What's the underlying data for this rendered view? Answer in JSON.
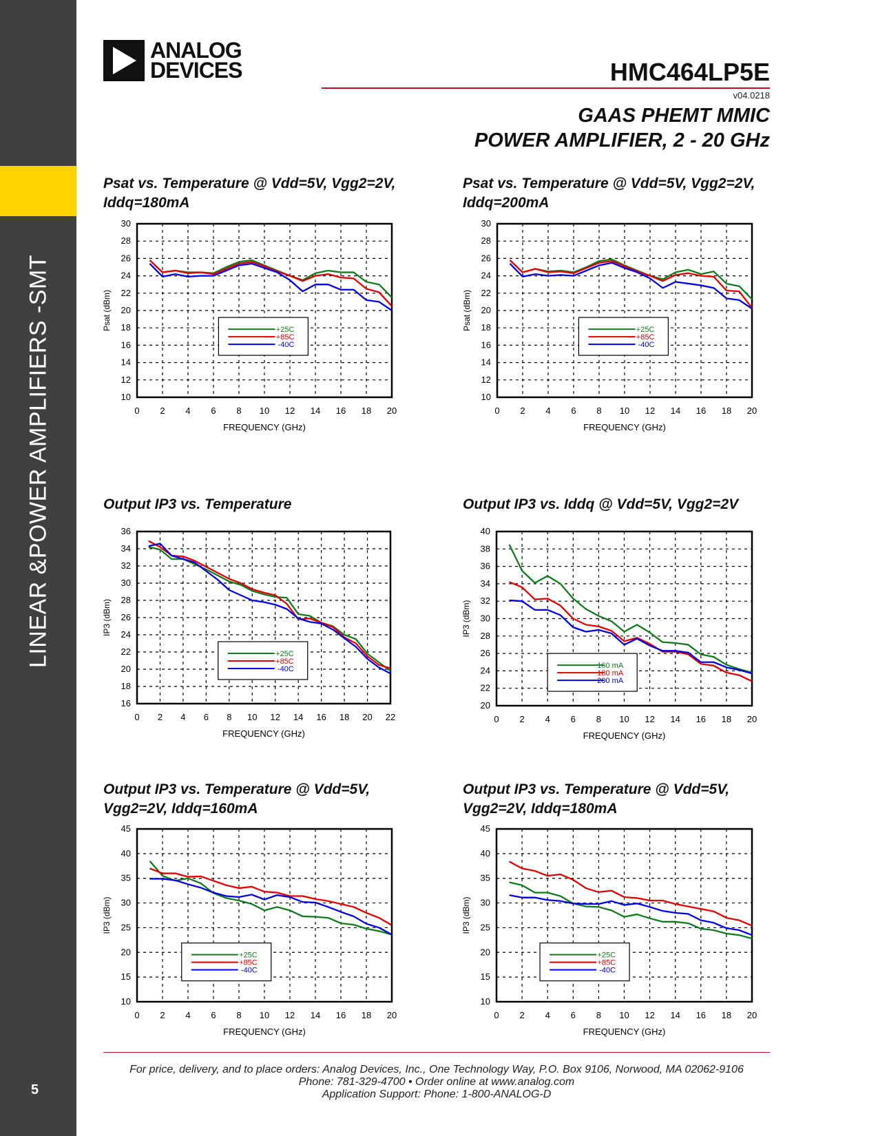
{
  "sidebar": {
    "section": "LINEAR &POWER AMPLIFIERS -SMT",
    "page_number": "5"
  },
  "header": {
    "logo_line1": "ANALOG",
    "logo_line2": "DEVICES",
    "part_number": "HMC464LP5E",
    "version": "v04.0218",
    "subtitle_line1": "GAAS PHEMT MMIC",
    "subtitle_line2": "POWER AMPLIFIER, 2 - 20 GHz"
  },
  "colors": {
    "green": "#117a1a",
    "red": "#e00000",
    "blue": "#0000e0",
    "accent": "#c8102e",
    "sidebar": "#404040",
    "tab": "#ffd200"
  },
  "chart_data": [
    {
      "type": "line",
      "title": [
        "Psat vs. Temperature @ Vdd=5V, Vgg2=2V,",
        "Iddq=180mA"
      ],
      "xlabel": "FREQUENCY (GHz)",
      "ylabel": "Psat (dBm)",
      "xlim": [
        0,
        20
      ],
      "ylim": [
        10,
        30
      ],
      "xticks": [
        0,
        2,
        4,
        6,
        8,
        10,
        12,
        14,
        16,
        18,
        20
      ],
      "yticks": [
        10,
        12,
        14,
        16,
        18,
        20,
        22,
        24,
        26,
        28,
        30
      ],
      "grid": true,
      "legend": "center",
      "x": [
        1,
        2,
        3,
        4,
        5,
        6,
        7,
        8,
        9,
        10,
        11,
        12,
        13,
        14,
        15,
        16,
        17,
        18,
        19,
        20
      ],
      "series": [
        {
          "name": "+25C",
          "color": "#117a1a",
          "values": [
            25.8,
            24.4,
            24.6,
            24.4,
            24.4,
            24.3,
            25.0,
            25.6,
            25.8,
            25.2,
            24.6,
            24.0,
            23.5,
            24.3,
            24.6,
            24.4,
            24.4,
            23.3,
            23.0,
            21.5
          ]
        },
        {
          "name": "+85C",
          "color": "#e00000",
          "values": [
            25.8,
            24.4,
            24.6,
            24.3,
            24.4,
            24.2,
            24.8,
            25.4,
            25.6,
            25.1,
            24.5,
            24.0,
            23.4,
            24.0,
            24.2,
            23.8,
            23.7,
            22.5,
            22.1,
            20.5
          ]
        },
        {
          "name": "-40C",
          "color": "#0000e0",
          "values": [
            25.4,
            23.9,
            24.2,
            23.9,
            24.0,
            24.0,
            24.6,
            25.2,
            25.4,
            24.9,
            24.4,
            23.5,
            22.2,
            23.0,
            23.0,
            22.4,
            22.4,
            21.2,
            21.0,
            20.0
          ]
        }
      ]
    },
    {
      "type": "line",
      "title": [
        "Psat vs. Temperature @ Vdd=5V, Vgg2=2V,",
        "Iddq=200mA"
      ],
      "xlabel": "FREQUENCY (GHz)",
      "ylabel": "Psat (dBm)",
      "xlim": [
        0,
        20
      ],
      "ylim": [
        10,
        30
      ],
      "xticks": [
        0,
        2,
        4,
        6,
        8,
        10,
        12,
        14,
        16,
        18,
        20
      ],
      "yticks": [
        10,
        12,
        14,
        16,
        18,
        20,
        22,
        24,
        26,
        28,
        30
      ],
      "grid": true,
      "legend": "center",
      "x": [
        1,
        2,
        3,
        4,
        5,
        6,
        7,
        8,
        9,
        10,
        11,
        12,
        13,
        14,
        15,
        16,
        17,
        18,
        19,
        20
      ],
      "series": [
        {
          "name": "+25C",
          "color": "#117a1a",
          "values": [
            25.8,
            24.4,
            24.8,
            24.5,
            24.6,
            24.4,
            25.0,
            25.7,
            25.9,
            25.2,
            24.6,
            24.0,
            23.6,
            24.4,
            24.7,
            24.2,
            24.5,
            23.1,
            22.8,
            21.3
          ]
        },
        {
          "name": "+85C",
          "color": "#e00000",
          "values": [
            25.8,
            24.4,
            24.8,
            24.4,
            24.5,
            24.3,
            24.9,
            25.5,
            25.7,
            25.1,
            24.5,
            24.0,
            23.4,
            24.1,
            24.3,
            24.0,
            23.9,
            22.3,
            22.2,
            20.3
          ]
        },
        {
          "name": "-40C",
          "color": "#0000e0",
          "values": [
            25.4,
            23.9,
            24.2,
            24.0,
            24.1,
            24.0,
            24.6,
            25.2,
            25.5,
            24.9,
            24.4,
            23.7,
            22.6,
            23.3,
            23.1,
            22.9,
            22.6,
            21.4,
            21.2,
            20.2
          ]
        }
      ]
    },
    {
      "type": "line",
      "title": [
        "Output IP3 vs. Temperature"
      ],
      "xlabel": "FREQUENCY (GHz)",
      "ylabel": "IP3 (dBm)",
      "xlim": [
        0,
        22
      ],
      "ylim": [
        16,
        36
      ],
      "xticks": [
        0,
        2,
        4,
        6,
        8,
        10,
        12,
        14,
        16,
        18,
        20,
        22
      ],
      "yticks": [
        16,
        18,
        20,
        22,
        24,
        26,
        28,
        30,
        32,
        34,
        36
      ],
      "grid": true,
      "legend": "bottom-center",
      "x": [
        1,
        2,
        3,
        4,
        5,
        6,
        7,
        8,
        9,
        10,
        11,
        12,
        13,
        14,
        15,
        16,
        17,
        18,
        19,
        20,
        21,
        22
      ],
      "series": [
        {
          "name": "+25C",
          "color": "#117a1a",
          "values": [
            34.2,
            33.9,
            32.8,
            32.8,
            32.2,
            31.6,
            30.9,
            30.2,
            29.8,
            29.1,
            28.7,
            28.4,
            28.3,
            26.4,
            26.2,
            25.4,
            25.0,
            24.0,
            23.5,
            21.8,
            20.8,
            19.8
          ]
        },
        {
          "name": "+85C",
          "color": "#e00000",
          "values": [
            34.9,
            34.2,
            33.2,
            33.1,
            32.6,
            31.9,
            31.2,
            30.5,
            30.0,
            29.3,
            28.9,
            28.6,
            27.6,
            25.8,
            25.9,
            25.4,
            24.9,
            23.7,
            23.0,
            21.5,
            20.5,
            20.1
          ]
        },
        {
          "name": "-40C",
          "color": "#0000e0",
          "values": [
            34.3,
            34.6,
            33.2,
            32.8,
            32.4,
            31.4,
            30.4,
            29.2,
            28.6,
            28.0,
            27.8,
            27.5,
            27.0,
            25.9,
            25.5,
            25.3,
            24.6,
            23.6,
            22.6,
            21.2,
            20.2,
            19.5
          ]
        }
      ]
    },
    {
      "type": "line",
      "title": [
        "Output IP3 vs. Iddq @ Vdd=5V, Vgg2=2V"
      ],
      "xlabel": "FREQUENCY (GHz)",
      "ylabel": "IP3 (dBm)",
      "xlim": [
        0,
        20
      ],
      "ylim": [
        20,
        40
      ],
      "xticks": [
        0,
        2,
        4,
        6,
        8,
        10,
        12,
        14,
        16,
        18,
        20
      ],
      "yticks": [
        20,
        22,
        24,
        26,
        28,
        30,
        32,
        34,
        36,
        38,
        40
      ],
      "grid": true,
      "legend": "bottom-left",
      "x": [
        1,
        2,
        3,
        4,
        5,
        6,
        7,
        8,
        9,
        10,
        11,
        12,
        13,
        14,
        15,
        16,
        17,
        18,
        19,
        20
      ],
      "series": [
        {
          "name": "160 mA",
          "color": "#117a1a",
          "values": [
            38.5,
            35.5,
            34.1,
            34.9,
            34.0,
            32.3,
            31.1,
            30.3,
            29.7,
            28.5,
            29.3,
            28.4,
            27.3,
            27.2,
            27.0,
            25.9,
            25.6,
            24.7,
            24.2,
            23.8
          ]
        },
        {
          "name": "180 mA",
          "color": "#e00000",
          "values": [
            34.2,
            33.6,
            32.2,
            32.3,
            31.5,
            30.0,
            29.3,
            29.1,
            28.6,
            27.4,
            27.8,
            27.1,
            26.2,
            26.2,
            25.9,
            24.8,
            24.6,
            23.8,
            23.5,
            22.8
          ]
        },
        {
          "name": "200 mA",
          "color": "#0000e0",
          "values": [
            32.1,
            32.0,
            31.0,
            31.0,
            30.4,
            29.0,
            28.5,
            28.7,
            28.3,
            27.0,
            27.7,
            26.9,
            26.3,
            26.3,
            26.1,
            25.0,
            25.0,
            24.4,
            24.1,
            23.7
          ]
        }
      ]
    },
    {
      "type": "line",
      "title": [
        "Output IP3 vs. Temperature @ Vdd=5V,",
        "Vgg2=2V, Iddq=160mA"
      ],
      "xlabel": "FREQUENCY (GHz)",
      "ylabel": "IP3 (dBm)",
      "xlim": [
        0,
        20
      ],
      "ylim": [
        10,
        45
      ],
      "xticks": [
        0,
        2,
        4,
        6,
        8,
        10,
        12,
        14,
        16,
        18,
        20
      ],
      "yticks": [
        10,
        15,
        20,
        25,
        30,
        35,
        40,
        45
      ],
      "grid": true,
      "legend": "bottom-left",
      "x": [
        1,
        2,
        3,
        4,
        5,
        6,
        7,
        8,
        9,
        10,
        11,
        12,
        13,
        14,
        15,
        16,
        17,
        18,
        19,
        20
      ],
      "series": [
        {
          "name": "+25C",
          "color": "#117a1a",
          "values": [
            38.5,
            35.5,
            34.5,
            35.0,
            34.0,
            32.0,
            31.0,
            30.5,
            29.8,
            28.5,
            29.2,
            28.5,
            27.3,
            27.2,
            27.0,
            25.9,
            25.6,
            24.8,
            24.3,
            23.6
          ]
        },
        {
          "name": "+85C",
          "color": "#e00000",
          "values": [
            37.0,
            36.0,
            36.0,
            35.3,
            35.4,
            34.5,
            33.6,
            33.0,
            33.3,
            32.3,
            32.1,
            31.4,
            31.4,
            30.8,
            30.4,
            29.8,
            29.2,
            28.0,
            27.0,
            25.5
          ]
        },
        {
          "name": "-40C",
          "color": "#0000e0",
          "values": [
            34.9,
            34.9,
            34.6,
            33.8,
            33.1,
            32.1,
            31.4,
            31.2,
            31.7,
            30.7,
            31.6,
            31.2,
            30.2,
            30.1,
            29.2,
            28.2,
            27.3,
            25.8,
            25.0,
            23.6
          ]
        }
      ]
    },
    {
      "type": "line",
      "title": [
        "Output IP3 vs. Temperature @ Vdd=5V,",
        "Vgg2=2V, Iddq=180mA"
      ],
      "xlabel": "FREQUENCY (GHz)",
      "ylabel": "IP3 (dBm)",
      "xlim": [
        0,
        20
      ],
      "ylim": [
        10,
        45
      ],
      "xticks": [
        0,
        2,
        4,
        6,
        8,
        10,
        12,
        14,
        16,
        18,
        20
      ],
      "yticks": [
        10,
        15,
        20,
        25,
        30,
        35,
        40,
        45
      ],
      "grid": true,
      "legend": "bottom-left",
      "x": [
        1,
        2,
        3,
        4,
        5,
        6,
        7,
        8,
        9,
        10,
        11,
        12,
        13,
        14,
        15,
        16,
        17,
        18,
        19,
        20
      ],
      "series": [
        {
          "name": "+25C",
          "color": "#117a1a",
          "values": [
            34.2,
            33.6,
            32.1,
            32.1,
            31.4,
            29.9,
            29.3,
            29.2,
            28.5,
            27.2,
            27.7,
            26.9,
            26.2,
            26.2,
            25.9,
            24.8,
            24.5,
            23.8,
            23.5,
            22.8
          ]
        },
        {
          "name": "+85C",
          "color": "#e00000",
          "values": [
            38.4,
            37.0,
            36.5,
            35.5,
            35.8,
            34.7,
            33.0,
            32.2,
            32.5,
            31.2,
            31.0,
            30.5,
            30.5,
            29.8,
            29.3,
            28.8,
            28.3,
            27.0,
            26.5,
            25.4
          ]
        },
        {
          "name": "-40C",
          "color": "#0000e0",
          "values": [
            31.6,
            31.1,
            31.1,
            30.6,
            30.4,
            29.9,
            29.8,
            29.8,
            30.4,
            29.6,
            29.9,
            29.2,
            28.4,
            28.0,
            27.8,
            26.5,
            26.0,
            24.9,
            24.5,
            23.5
          ]
        }
      ]
    }
  ],
  "footer": {
    "line1": "For price, delivery, and to place orders: Analog Devices, Inc., One Technology Way, P.O. Box 9106, Norwood, MA 02062-9106",
    "line2": "Phone: 781-329-4700 • Order online at www.analog.com",
    "line3": "Application Support: Phone: 1-800-ANALOG-D"
  }
}
